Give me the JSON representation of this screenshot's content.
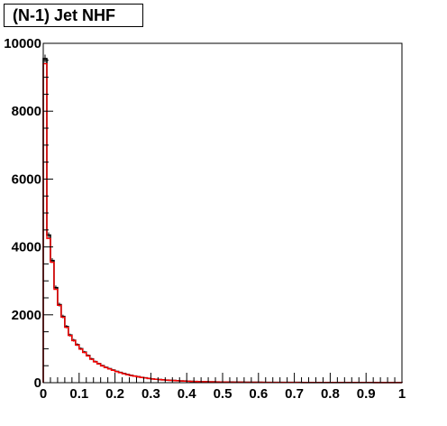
{
  "chart_data": {
    "type": "histogram",
    "title": "(N-1) Jet NHF",
    "xlabel": "",
    "ylabel": "",
    "xlim": [
      0,
      1
    ],
    "ylim": [
      0,
      10000
    ],
    "x_ticks": [
      "0",
      "0.1",
      "0.2",
      "0.3",
      "0.4",
      "0.5",
      "0.6",
      "0.7",
      "0.8",
      "0.9",
      "1"
    ],
    "y_ticks": [
      "0",
      "2000",
      "4000",
      "6000",
      "8000",
      "10000"
    ],
    "bin_width": 0.01,
    "grid": false,
    "series": [
      {
        "color": "#000000",
        "values": [
          9550,
          4350,
          3600,
          2800,
          2300,
          1950,
          1650,
          1400,
          1250,
          1120,
          1000,
          900,
          800,
          700,
          620,
          560,
          500,
          450,
          410,
          370,
          330,
          300,
          270,
          240,
          215,
          195,
          175,
          155,
          140,
          125,
          110,
          100,
          92,
          84,
          76,
          70,
          64,
          58,
          52,
          47,
          43,
          39,
          36,
          33,
          30,
          28,
          26,
          24,
          22,
          20,
          19,
          18,
          17,
          16,
          15,
          14,
          13,
          12,
          12,
          11,
          11,
          10,
          10,
          9,
          9,
          8,
          8,
          8,
          7,
          7,
          7,
          7,
          6,
          6,
          6,
          6,
          5,
          5,
          5,
          5,
          5,
          5,
          5,
          4,
          4,
          4,
          4,
          4,
          4,
          4,
          4,
          4,
          4,
          3,
          3,
          3,
          3,
          3,
          3,
          3
        ]
      },
      {
        "color": "#ff0000",
        "values": [
          9400,
          4250,
          3550,
          2750,
          2280,
          1930,
          1630,
          1390,
          1240,
          1110,
          990,
          890,
          790,
          690,
          615,
          555,
          495,
          445,
          405,
          365,
          325,
          295,
          265,
          238,
          212,
          193,
          173,
          153,
          138,
          124,
          109,
          99,
          91,
          83,
          75,
          69,
          63,
          57,
          51,
          46,
          42,
          38,
          35,
          32,
          29,
          27,
          25,
          23,
          21,
          19,
          18,
          17,
          16,
          15,
          14,
          13,
          12,
          12,
          11,
          11,
          10,
          10,
          9,
          9,
          8,
          8,
          8,
          7,
          7,
          7,
          7,
          6,
          6,
          6,
          6,
          5,
          5,
          5,
          5,
          5,
          5,
          5,
          4,
          4,
          4,
          4,
          4,
          4,
          4,
          4,
          4,
          4,
          3,
          3,
          3,
          3,
          3,
          3,
          3,
          3
        ]
      }
    ]
  }
}
